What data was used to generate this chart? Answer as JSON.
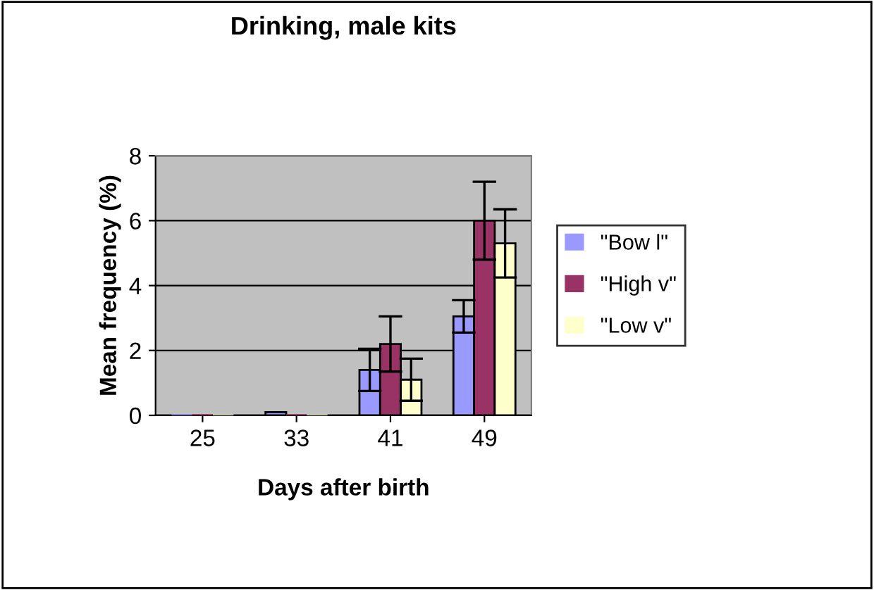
{
  "chart_data": {
    "type": "bar",
    "title": "Drinking, male kits",
    "xlabel": "Days after birth",
    "ylabel": "Mean frequency (%)",
    "categories": [
      "25",
      "33",
      "41",
      "49"
    ],
    "series": [
      {
        "name": "\"Bow l\"",
        "color": "#9999ff",
        "values": [
          0,
          0.1,
          1.4,
          3.05
        ],
        "errors": [
          null,
          null,
          0.65,
          0.5
        ]
      },
      {
        "name": "\"High v\"",
        "color": "#993366",
        "values": [
          0,
          0,
          2.2,
          6.0
        ],
        "errors": [
          null,
          null,
          0.85,
          1.2
        ]
      },
      {
        "name": "\"Low v\"",
        "color": "#ffffcc",
        "values": [
          0,
          0,
          1.1,
          5.3
        ],
        "errors": [
          null,
          null,
          0.65,
          1.05
        ]
      }
    ],
    "ylim": [
      0,
      8
    ],
    "yticks": [
      0,
      2,
      4,
      6,
      8
    ],
    "grid": "y",
    "legend": "right"
  }
}
